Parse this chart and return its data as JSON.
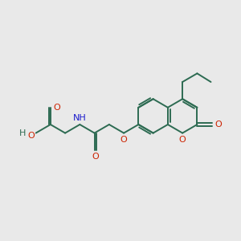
{
  "bg_color": "#e9e9e9",
  "bond_color": "#2d6b52",
  "oxygen_color": "#cc2200",
  "nitrogen_color": "#1a1acc",
  "carbon_color": "#2d6b52",
  "text_color_dark": "#2d6b52",
  "line_width": 1.4,
  "font_size": 8.0,
  "figsize": [
    3.0,
    3.0
  ],
  "dpi": 100,
  "xlim": [
    0,
    10
  ],
  "ylim": [
    0,
    10
  ]
}
